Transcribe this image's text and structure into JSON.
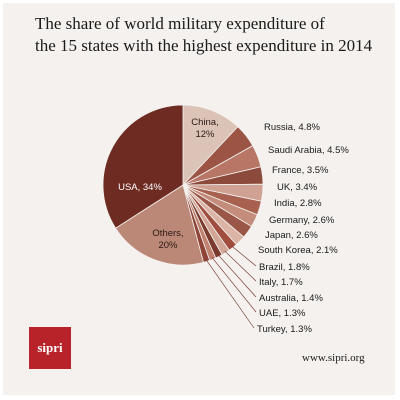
{
  "chart_data": {
    "type": "pie",
    "title": "The share of world military expenditure of the 15 states with the highest expenditure in 2014",
    "title_lines": [
      "The share of world military expenditure of",
      "the 15 states with the highest expenditure in 2014"
    ],
    "unit": "%",
    "slices": [
      {
        "label": "China",
        "value": 12,
        "value_label": "12%",
        "color": "#dcc3b7",
        "text_lines": [
          "China,",
          "12%"
        ],
        "text_color": "#2a1a14"
      },
      {
        "label": "Russia",
        "value": 4.8,
        "value_label": "4.8%",
        "color": "#9c5445",
        "text_lines": [
          "Russia, 4.8%"
        ]
      },
      {
        "label": "Saudi Arabia",
        "value": 4.5,
        "value_label": "4.5%",
        "color": "#b77666",
        "text_lines": [
          "Saudi Arabia, 4.5%"
        ]
      },
      {
        "label": "France",
        "value": 3.5,
        "value_label": "3.5%",
        "color": "#8c4a3d",
        "text_lines": [
          "France, 3.5%"
        ]
      },
      {
        "label": "UK",
        "value": 3.4,
        "value_label": "3.4%",
        "color": "#cfa192",
        "text_lines": [
          "UK, 3.4%"
        ]
      },
      {
        "label": "India",
        "value": 2.8,
        "value_label": "2.8%",
        "color": "#a8604f",
        "text_lines": [
          "India, 2.8%"
        ]
      },
      {
        "label": "Germany",
        "value": 2.6,
        "value_label": "2.6%",
        "color": "#c48c7a",
        "text_lines": [
          "Germany, 2.6%"
        ]
      },
      {
        "label": "Japan",
        "value": 2.6,
        "value_label": "2.6%",
        "color": "#9a5646",
        "text_lines": [
          "Japan, 2.6%"
        ]
      },
      {
        "label": "South Korea",
        "value": 2.1,
        "value_label": "2.1%",
        "color": "#dbb4a5",
        "text_lines": [
          "South Korea, 2.1%"
        ]
      },
      {
        "label": "Brazil",
        "value": 1.8,
        "value_label": "1.8%",
        "color": "#a04d3e",
        "text_lines": [
          "Brazil, 1.8%"
        ]
      },
      {
        "label": "Italy",
        "value": 1.7,
        "value_label": "1.7%",
        "color": "#d2a797",
        "text_lines": [
          "Italy, 1.7%"
        ]
      },
      {
        "label": "Australia",
        "value": 1.4,
        "value_label": "1.4%",
        "color": "#7a3a2e",
        "text_lines": [
          "Australia, 1.4%"
        ]
      },
      {
        "label": "UAE",
        "value": 1.3,
        "value_label": "1.3%",
        "color": "#c0826f",
        "text_lines": [
          "UAE, 1.3%"
        ]
      },
      {
        "label": "Turkey",
        "value": 1.3,
        "value_label": "1.3%",
        "color": "#8e4436",
        "text_lines": [
          "Turkey, 1.3%"
        ]
      },
      {
        "label": "Others",
        "value": 20,
        "value_label": "20%",
        "color": "#bb8777",
        "text_lines": [
          "Others,",
          "20%"
        ],
        "text_color": "#2a1a14"
      },
      {
        "label": "USA",
        "value": 34,
        "value_label": "34%",
        "color": "#6e2b22",
        "text_lines": [
          "USA, 34%"
        ],
        "text_color": "#ffffff"
      }
    ],
    "legend": "none"
  },
  "branding": {
    "logo_text": "sipri",
    "logo_color": "#b8232a",
    "website": "www.sipri.org"
  }
}
